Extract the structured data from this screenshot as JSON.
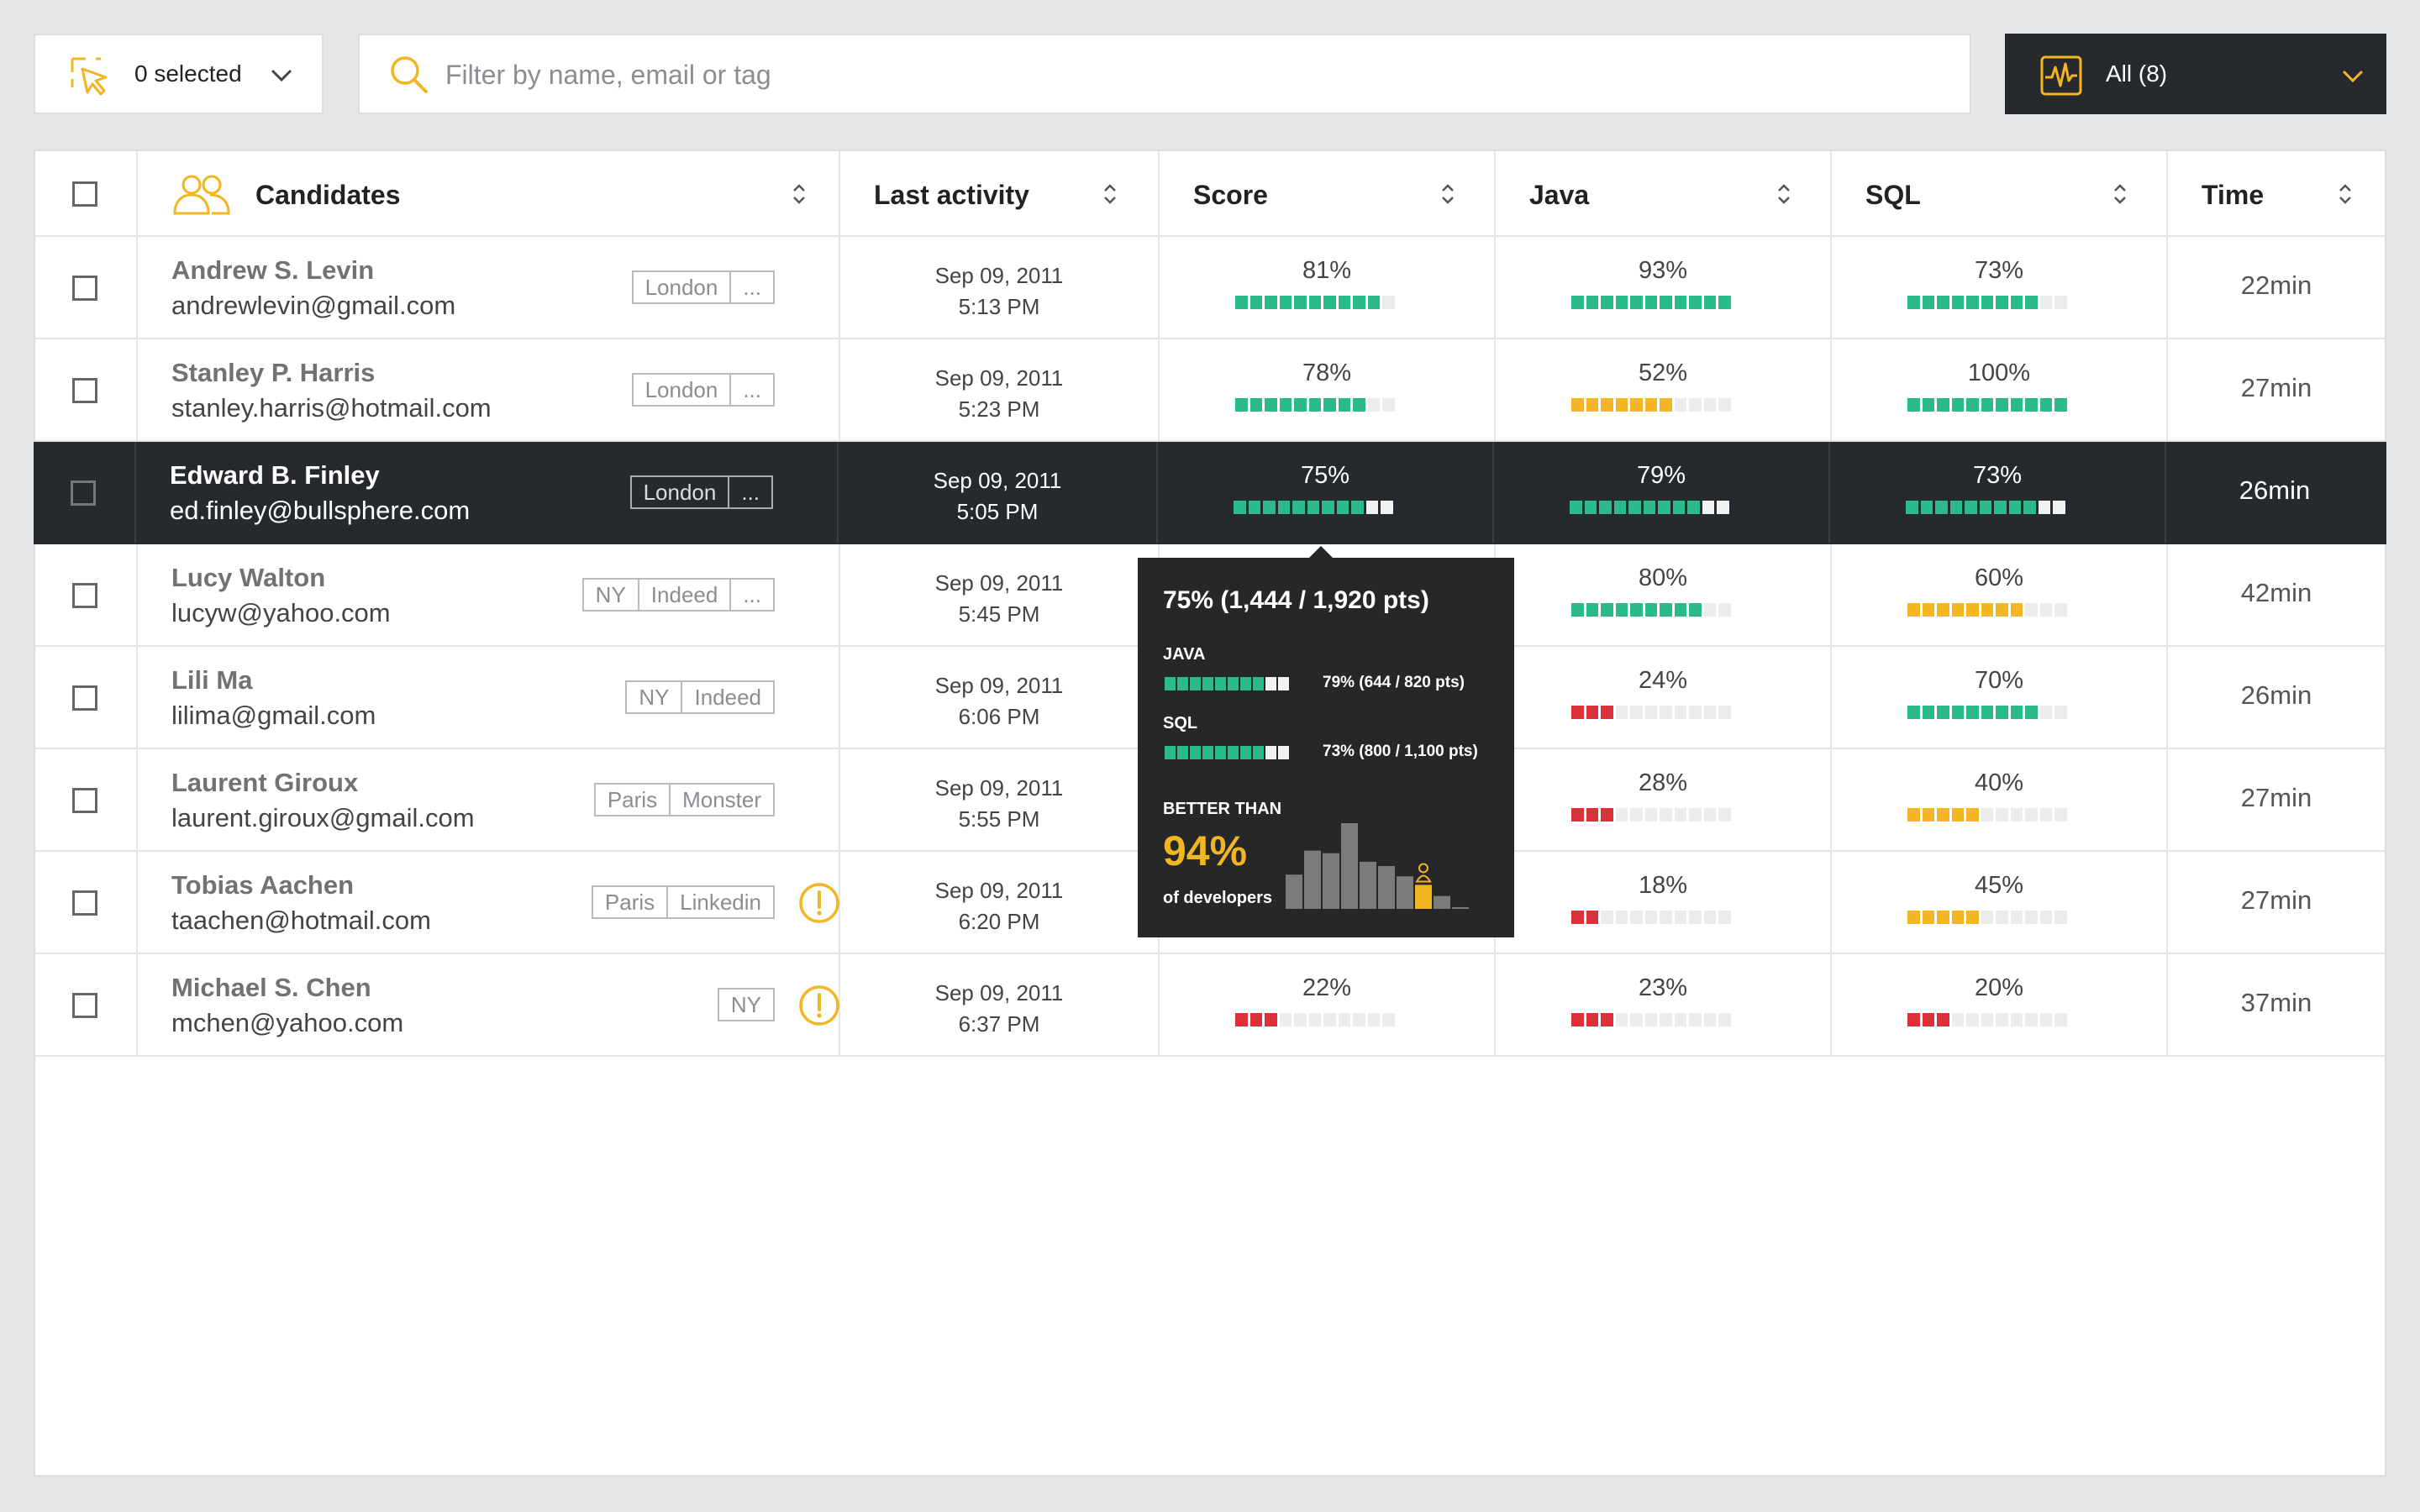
{
  "toolbar": {
    "selected_label": "0 selected",
    "search_placeholder": "Filter by name, email or tag",
    "filter_label": "All (8)"
  },
  "colors": {
    "accent": "#f3b623",
    "green": "#2bba8a",
    "yellow": "#f3b623",
    "red": "#d9323a",
    "dark": "#262a2e"
  },
  "table": {
    "headers": {
      "candidates": "Candidates",
      "activity": "Last activity",
      "score": "Score",
      "java": "Java",
      "sql": "SQL",
      "time": "Time"
    },
    "rows": [
      {
        "name": "Andrew S. Levin",
        "email": "andrewlevin@gmail.com",
        "tags": [
          "London",
          "..."
        ],
        "warning": false,
        "date": "Sep 09, 2011",
        "time_of_day": "5:13 PM",
        "score": {
          "label": "81%",
          "fill": 10,
          "color": "green"
        },
        "java": {
          "label": "93%",
          "fill": 11,
          "color": "green"
        },
        "sql": {
          "label": "73%",
          "fill": 9,
          "color": "green"
        },
        "time": "22min"
      },
      {
        "name": "Stanley P. Harris",
        "email": "stanley.harris@hotmail.com",
        "tags": [
          "London",
          "..."
        ],
        "warning": false,
        "date": "Sep 09, 2011",
        "time_of_day": "5:23 PM",
        "score": {
          "label": "78%",
          "fill": 9,
          "color": "green"
        },
        "java": {
          "label": "52%",
          "fill": 7,
          "color": "yellow"
        },
        "sql": {
          "label": "100%",
          "fill": 11,
          "color": "green"
        },
        "time": "27min"
      },
      {
        "name": "Edward B. Finley",
        "email": "ed.finley@bullsphere.com",
        "tags": [
          "London",
          "..."
        ],
        "warning": false,
        "selected": true,
        "date": "Sep 09, 2011",
        "time_of_day": "5:05 PM",
        "score": {
          "label": "75%",
          "fill": 9,
          "color": "green"
        },
        "java": {
          "label": "79%",
          "fill": 9,
          "color": "green"
        },
        "sql": {
          "label": "73%",
          "fill": 9,
          "color": "green"
        },
        "time": "26min"
      },
      {
        "name": "Lucy Walton",
        "email": "lucyw@yahoo.com",
        "tags": [
          "NY",
          "Indeed",
          "..."
        ],
        "warning": false,
        "date": "Sep 09, 2011",
        "time_of_day": "5:45 PM",
        "score": null,
        "java": {
          "label": "80%",
          "fill": 9,
          "color": "green"
        },
        "sql": {
          "label": "60%",
          "fill": 8,
          "color": "yellow"
        },
        "time": "42min"
      },
      {
        "name": "Lili Ma",
        "email": "lilima@gmail.com",
        "tags": [
          "NY",
          "Indeed"
        ],
        "warning": false,
        "date": "Sep 09, 2011",
        "time_of_day": "6:06 PM",
        "score": null,
        "java": {
          "label": "24%",
          "fill": 3,
          "color": "red"
        },
        "sql": {
          "label": "70%",
          "fill": 9,
          "color": "green"
        },
        "time": "26min"
      },
      {
        "name": "Laurent Giroux",
        "email": "laurent.giroux@gmail.com",
        "tags": [
          "Paris",
          "Monster"
        ],
        "warning": false,
        "date": "Sep 09, 2011",
        "time_of_day": "5:55 PM",
        "score": null,
        "java": {
          "label": "28%",
          "fill": 3,
          "color": "red"
        },
        "sql": {
          "label": "40%",
          "fill": 5,
          "color": "yellow"
        },
        "time": "27min"
      },
      {
        "name": "Tobias Aachen",
        "email": "taachen@hotmail.com",
        "tags": [
          "Paris",
          "Linkedin"
        ],
        "warning": true,
        "date": "Sep 09, 2011",
        "time_of_day": "6:20 PM",
        "score": null,
        "java": {
          "label": "18%",
          "fill": 2,
          "color": "red"
        },
        "sql": {
          "label": "45%",
          "fill": 5,
          "color": "yellow"
        },
        "time": "27min"
      },
      {
        "name": "Michael S. Chen",
        "email": "mchen@yahoo.com",
        "tags": [
          "NY"
        ],
        "warning": true,
        "date": "Sep 09, 2011",
        "time_of_day": "6:37 PM",
        "score": {
          "label": "22%",
          "fill": 3,
          "color": "red"
        },
        "java": {
          "label": "23%",
          "fill": 3,
          "color": "red"
        },
        "sql": {
          "label": "20%",
          "fill": 3,
          "color": "red"
        },
        "time": "37min"
      }
    ]
  },
  "tooltip": {
    "headline": "75% (1,444 / 1,920 pts)",
    "java_label": "JAVA",
    "java_value": "79% (644 / 820 pts)",
    "java_fill": 8,
    "sql_label": "SQL",
    "sql_value": "73% (800 / 1,100 pts)",
    "sql_fill": 8,
    "better_than": "BETTER THAN",
    "percentile": "94%",
    "of_developers": "of developers",
    "histogram": [
      0.4,
      0.68,
      0.65,
      1.0,
      0.55,
      0.5,
      0.38,
      0.28,
      0.15,
      0.02
    ],
    "highlight_index": 7
  }
}
